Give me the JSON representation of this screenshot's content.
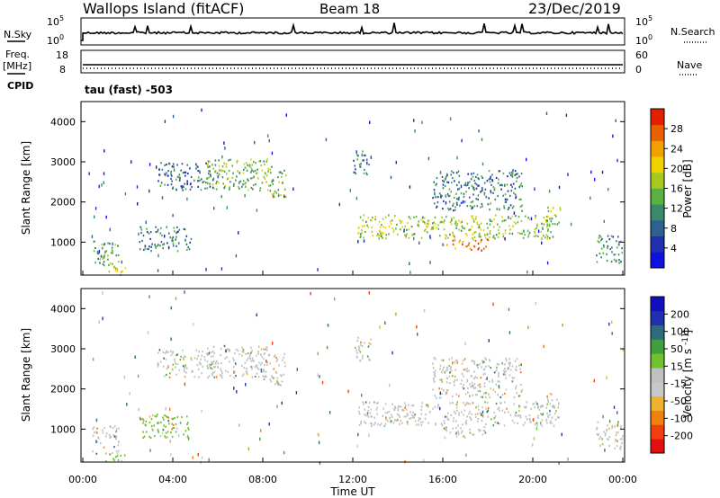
{
  "header": {
    "station": "Wallops Island (fitACF)",
    "beam": "Beam 18",
    "date": "23/Dec/2019"
  },
  "summary_panels": {
    "nsky_label": "N.Sky",
    "nsky_ticks": [
      "10^5",
      "10^0"
    ],
    "nsearch_label": "N.Search",
    "nsearch_ticks": [
      "10^5",
      "10^0"
    ],
    "freq_label": "Freq.",
    "freq_unit": "[MHz]",
    "freq_ticks": [
      "18",
      "8"
    ],
    "nave_label": "Nave",
    "nave_ticks": [
      "60",
      "0"
    ],
    "cpid_label": "CPID",
    "cpid_text": "tau (fast) -503"
  },
  "colors": {
    "power_scale": [
      "#1010e0",
      "#2030b0",
      "#306090",
      "#3a8a6a",
      "#5ab040",
      "#a8c820",
      "#f0d000",
      "#f0a000",
      "#e86000",
      "#e02000"
    ],
    "velocity_scale": [
      "#e01010",
      "#f04010",
      "#f08010",
      "#f0b030",
      "#c8c8c8",
      "#c0c0c0",
      "#70c030",
      "#40a040",
      "#306a80",
      "#2030b0",
      "#1010c0"
    ]
  },
  "chart_data": [
    {
      "type": "heatmap",
      "panel": "power",
      "xlabel": "",
      "ylabel": "Slant Range [km]",
      "xlim": [
        "00:00",
        "24:00"
      ],
      "ylim": [
        180,
        4500
      ],
      "yticks": [
        "1000",
        "2000",
        "3000",
        "4000"
      ],
      "colorbar_label": "Power [dB]",
      "colorbar_ticks": [
        "28",
        "24",
        "20",
        "16",
        "12",
        "8",
        "4"
      ],
      "colorbar_range": [
        0,
        30
      ],
      "regions": [
        {
          "t0": 0.4,
          "t1": 1.6,
          "r0": 400,
          "r1": 1100,
          "v": 12
        },
        {
          "t0": 1.0,
          "t1": 1.9,
          "r0": 200,
          "r1": 400,
          "v": 18
        },
        {
          "t0": 2.5,
          "t1": 4.8,
          "r0": 800,
          "r1": 1400,
          "v": 10
        },
        {
          "t0": 3.3,
          "t1": 5.8,
          "r0": 2300,
          "r1": 3000,
          "v": 8
        },
        {
          "t0": 5.5,
          "t1": 8.2,
          "r0": 2300,
          "r1": 3100,
          "v": 14
        },
        {
          "t0": 8.0,
          "t1": 9.0,
          "r0": 2100,
          "r1": 2900,
          "v": 14
        },
        {
          "t0": 12.0,
          "t1": 12.8,
          "r0": 2700,
          "r1": 3300,
          "v": 10
        },
        {
          "t0": 12.2,
          "t1": 21.0,
          "r0": 1100,
          "r1": 1700,
          "v": 16
        },
        {
          "t0": 16.0,
          "t1": 18.0,
          "r0": 800,
          "r1": 1100,
          "v": 24
        },
        {
          "t0": 15.5,
          "t1": 19.5,
          "r0": 1800,
          "r1": 2800,
          "v": 9
        },
        {
          "t0": 20.6,
          "t1": 21.2,
          "r0": 1300,
          "r1": 1900,
          "v": 14
        },
        {
          "t0": 22.8,
          "t1": 24.0,
          "r0": 500,
          "r1": 1200,
          "v": 10
        }
      ]
    },
    {
      "type": "heatmap",
      "panel": "velocity",
      "xlabel": "Time UT",
      "ylabel": "Slant Range [km]",
      "xlim": [
        "00:00",
        "24:00"
      ],
      "ylim": [
        180,
        4500
      ],
      "xticks": [
        "00:00",
        "04:00",
        "08:00",
        "12:00",
        "16:00",
        "20:00",
        "00:00"
      ],
      "yticks": [
        "1000",
        "2000",
        "3000",
        "4000"
      ],
      "colorbar_label": "Velocity [m s^-1]",
      "colorbar_ticks": [
        "200",
        "100",
        "50",
        "15",
        "-15",
        "-50",
        "-100",
        "-200"
      ],
      "colorbar_range": [
        -250,
        250
      ],
      "regions": [
        {
          "t0": 0.4,
          "t1": 1.6,
          "r0": 400,
          "r1": 1100,
          "v": 0
        },
        {
          "t0": 1.0,
          "t1": 1.9,
          "r0": 200,
          "r1": 400,
          "v": 40
        },
        {
          "t0": 2.5,
          "t1": 4.8,
          "r0": 800,
          "r1": 1400,
          "v": 40
        },
        {
          "t0": 3.3,
          "t1": 5.8,
          "r0": 2300,
          "r1": 3000,
          "v": 5
        },
        {
          "t0": 5.5,
          "t1": 8.2,
          "r0": 2300,
          "r1": 3100,
          "v": 0
        },
        {
          "t0": 8.0,
          "t1": 9.0,
          "r0": 2100,
          "r1": 2900,
          "v": 5
        },
        {
          "t0": 12.0,
          "t1": 12.8,
          "r0": 2700,
          "r1": 3300,
          "v": 0
        },
        {
          "t0": 12.2,
          "t1": 21.0,
          "r0": 1100,
          "r1": 1700,
          "v": 0
        },
        {
          "t0": 16.0,
          "t1": 18.0,
          "r0": 800,
          "r1": 1100,
          "v": 0
        },
        {
          "t0": 15.5,
          "t1": 19.5,
          "r0": 1800,
          "r1": 2800,
          "v": 10
        },
        {
          "t0": 20.6,
          "t1": 21.2,
          "r0": 1300,
          "r1": 1900,
          "v": 0
        },
        {
          "t0": 22.8,
          "t1": 24.0,
          "r0": 500,
          "r1": 1200,
          "v": 0
        }
      ]
    }
  ]
}
